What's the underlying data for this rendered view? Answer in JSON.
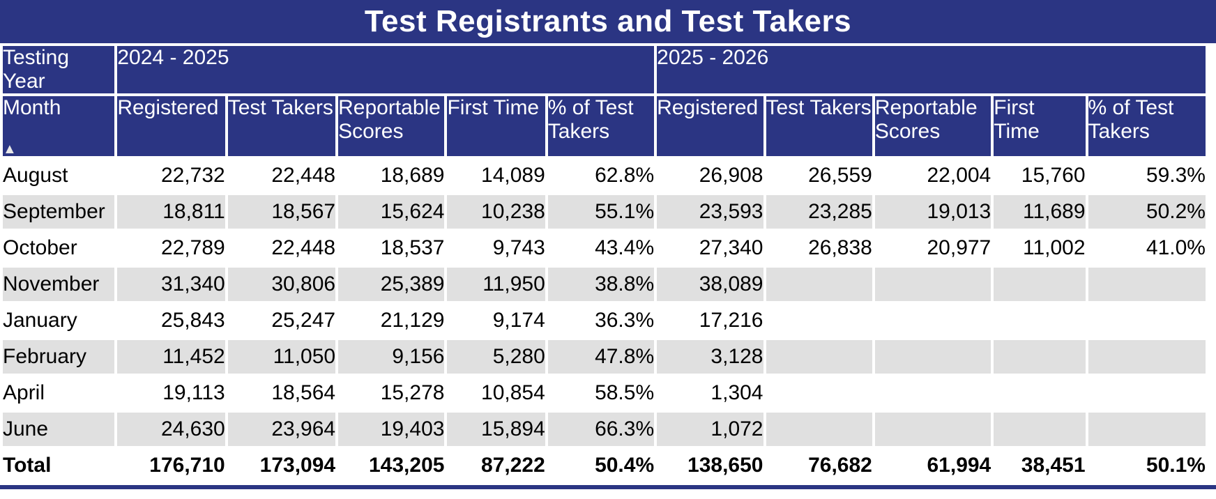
{
  "title": "Test Registrants and Test Takers",
  "colors": {
    "navy": "#2B3583",
    "stripe": "#E0E0E0",
    "header_text": "#FFFFFF"
  },
  "icons": {
    "sort_ascending": "▲"
  },
  "table": {
    "year_header_label": "Testing Year",
    "year_groups": [
      "2024 - 2025",
      "2025 - 2026"
    ],
    "month_header": "Month",
    "columns": [
      "Registered",
      "Test Takers",
      "Reportable Scores",
      "First Time",
      "% of Test Takers"
    ],
    "rows": [
      {
        "month": "August",
        "y1": [
          "22,732",
          "22,448",
          "18,689",
          "14,089",
          "62.8%"
        ],
        "y2": [
          "26,908",
          "26,559",
          "22,004",
          "15,760",
          "59.3%"
        ]
      },
      {
        "month": "September",
        "y1": [
          "18,811",
          "18,567",
          "15,624",
          "10,238",
          "55.1%"
        ],
        "y2": [
          "23,593",
          "23,285",
          "19,013",
          "11,689",
          "50.2%"
        ]
      },
      {
        "month": "October",
        "y1": [
          "22,789",
          "22,448",
          "18,537",
          "9,743",
          "43.4%"
        ],
        "y2": [
          "27,340",
          "26,838",
          "20,977",
          "11,002",
          "41.0%"
        ]
      },
      {
        "month": "November",
        "y1": [
          "31,340",
          "30,806",
          "25,389",
          "11,950",
          "38.8%"
        ],
        "y2": [
          "38,089",
          "",
          "",
          "",
          ""
        ]
      },
      {
        "month": "January",
        "y1": [
          "25,843",
          "25,247",
          "21,129",
          "9,174",
          "36.3%"
        ],
        "y2": [
          "17,216",
          "",
          "",
          "",
          ""
        ]
      },
      {
        "month": "February",
        "y1": [
          "11,452",
          "11,050",
          "9,156",
          "5,280",
          "47.8%"
        ],
        "y2": [
          "3,128",
          "",
          "",
          "",
          ""
        ]
      },
      {
        "month": "April",
        "y1": [
          "19,113",
          "18,564",
          "15,278",
          "10,854",
          "58.5%"
        ],
        "y2": [
          "1,304",
          "",
          "",
          "",
          ""
        ]
      },
      {
        "month": "June",
        "y1": [
          "24,630",
          "23,964",
          "19,403",
          "15,894",
          "66.3%"
        ],
        "y2": [
          "1,072",
          "",
          "",
          "",
          ""
        ]
      }
    ],
    "total": {
      "month": "Total",
      "y1": [
        "176,710",
        "173,094",
        "143,205",
        "87,222",
        "50.4%"
      ],
      "y2": [
        "138,650",
        "76,682",
        "61,994",
        "38,451",
        "50.1%"
      ]
    }
  }
}
